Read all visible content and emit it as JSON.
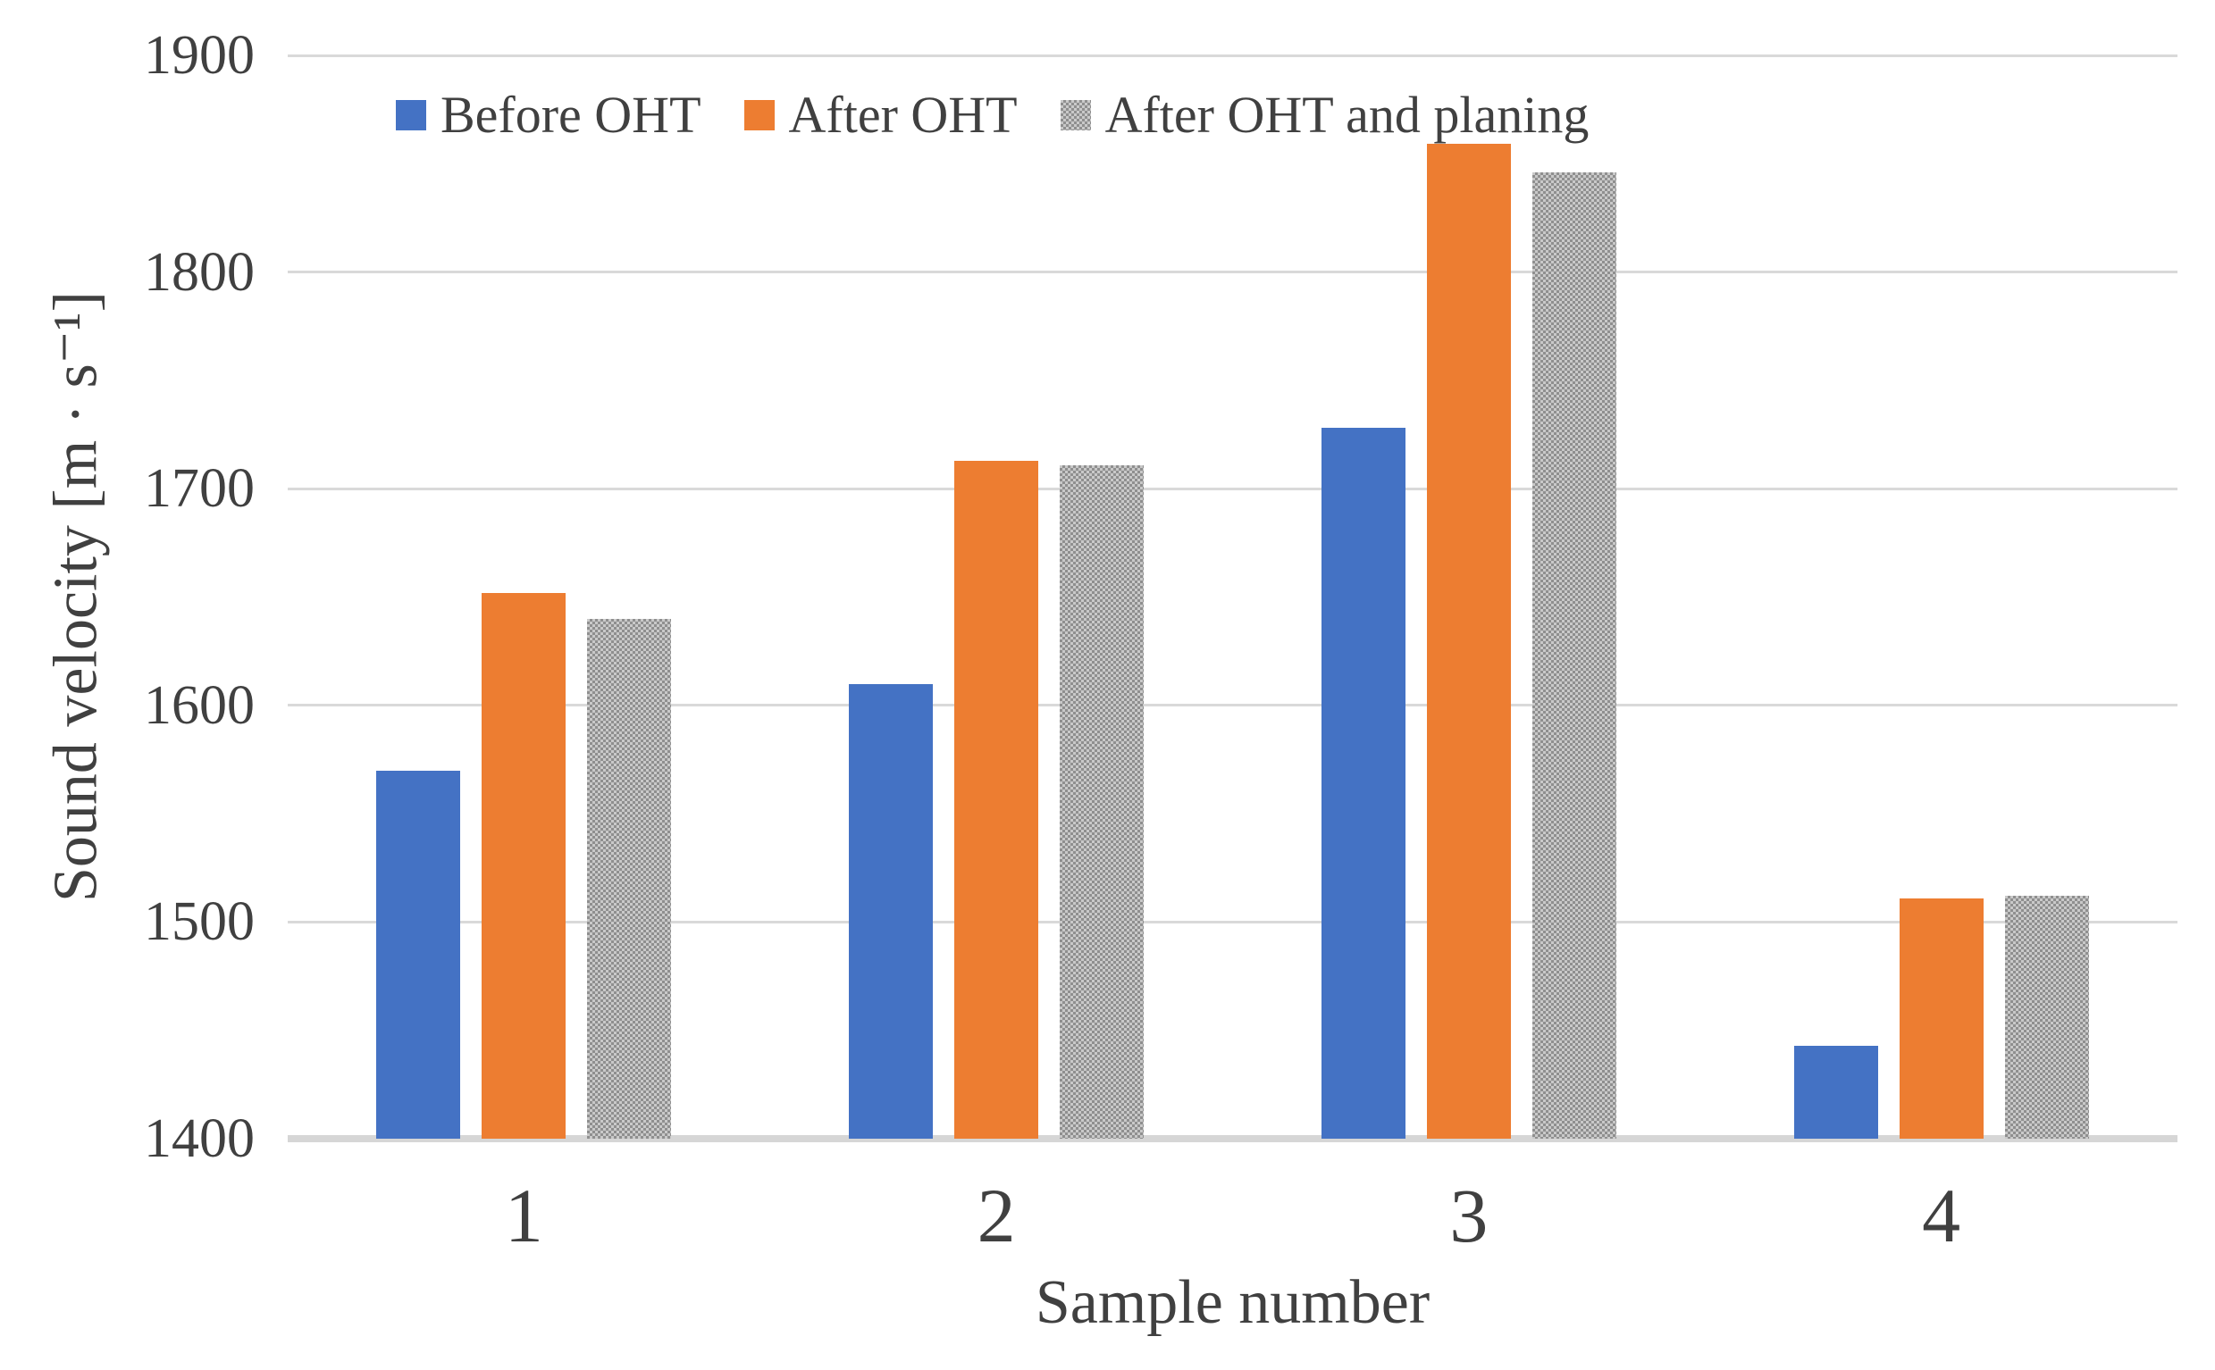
{
  "figure": {
    "background": "#FFFFFF",
    "text_color": "#404040",
    "gridline_color": "#D9D9D9",
    "axis_line_color": "#D6D6D6"
  },
  "chart_data": {
    "type": "bar",
    "title": "",
    "categories": [
      "1",
      "2",
      "3",
      "4"
    ],
    "series": [
      {
        "name": "Before OHT",
        "color": "#4472C4",
        "pattern": false,
        "values": [
          1570,
          1610,
          1728,
          1443
        ]
      },
      {
        "name": "After OHT",
        "color": "#ED7D31",
        "pattern": false,
        "values": [
          1652,
          1713,
          1859,
          1511
        ]
      },
      {
        "name": "After OHT and planing",
        "color": "#A6A6A6",
        "pattern": true,
        "pattern_colors": [
          "#8F8F8F",
          "#C9C9C9"
        ],
        "values": [
          1640,
          1711,
          1846,
          1512
        ]
      }
    ],
    "xlabel": "Sample number",
    "ylabel": "Sound velocity [m · s⁻¹]",
    "ylim": [
      1400,
      1900
    ],
    "yticks": [
      1400,
      1500,
      1600,
      1700,
      1800,
      1900
    ],
    "grid": true,
    "legend_position": "top"
  }
}
